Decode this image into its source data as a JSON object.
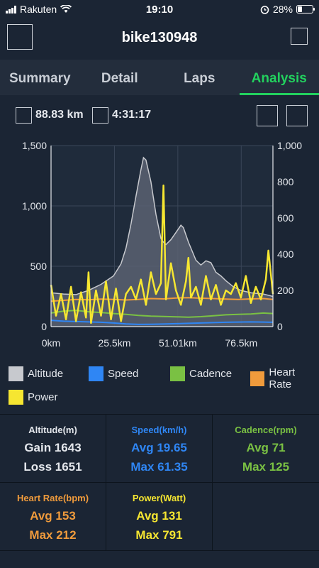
{
  "status_bar": {
    "carrier": "Rakuten",
    "time": "19:10",
    "battery_percent": "28%",
    "battery_level": 0.28
  },
  "header": {
    "title": "bike130948"
  },
  "tabs": [
    {
      "label": "Summary",
      "active": false
    },
    {
      "label": "Detail",
      "active": false
    },
    {
      "label": "Laps",
      "active": false
    },
    {
      "label": "Analysis",
      "active": true
    }
  ],
  "metrics": {
    "distance": "88.83 km",
    "duration": "4:31:17"
  },
  "colors": {
    "altitude": "#c7c9ce",
    "speed": "#2f86f4",
    "cadence": "#7ac143",
    "heart_rate": "#f09b3c",
    "power": "#f6e631",
    "accent": "#22d15e"
  },
  "chart_data": {
    "type": "line",
    "x_ticks": [
      "0km",
      "25.5km",
      "51.01km",
      "76.5km"
    ],
    "x_range": [
      0,
      88.83
    ],
    "y_left": {
      "ticks": [
        "0",
        "500",
        "1,000",
        "1,500"
      ],
      "range": [
        0,
        1500
      ]
    },
    "y_right": {
      "ticks": [
        "0",
        "200",
        "400",
        "600",
        "800",
        "1,000"
      ],
      "range": [
        0,
        1000
      ]
    },
    "grid": true,
    "legend": [
      "Altitude",
      "Speed",
      "Cadence",
      "Heart Rate",
      "Power"
    ],
    "series": [
      {
        "name": "Altitude",
        "axis": "left",
        "kind": "area",
        "x": [
          0,
          5,
          10,
          15,
          20,
          25,
          28,
          30,
          32,
          34,
          36,
          37,
          38,
          40,
          42,
          44,
          45,
          46,
          48,
          50,
          52,
          53,
          55,
          58,
          60,
          62,
          64,
          66,
          68,
          70,
          73,
          76,
          80,
          85,
          88.83
        ],
        "y": [
          280,
          270,
          265,
          300,
          350,
          420,
          520,
          650,
          850,
          1080,
          1300,
          1400,
          1380,
          1200,
          930,
          730,
          700,
          680,
          720,
          780,
          840,
          820,
          700,
          550,
          510,
          545,
          530,
          450,
          420,
          380,
          330,
          300,
          280,
          270,
          250
        ]
      },
      {
        "name": "Speed",
        "axis": "right",
        "kind": "line",
        "x": [
          0,
          5,
          10,
          15,
          20,
          25,
          30,
          35,
          40,
          45,
          50,
          55,
          60,
          65,
          70,
          75,
          80,
          85,
          88.83
        ],
        "y": [
          35,
          30,
          28,
          26,
          24,
          20,
          15,
          12,
          13,
          14,
          16,
          18,
          20,
          22,
          24,
          25,
          26,
          25,
          24
        ]
      },
      {
        "name": "Cadence",
        "axis": "right",
        "kind": "line",
        "x": [
          0,
          5,
          10,
          15,
          20,
          25,
          30,
          35,
          40,
          45,
          50,
          55,
          60,
          65,
          70,
          75,
          80,
          85,
          88.83
        ],
        "y": [
          75,
          85,
          90,
          82,
          78,
          72,
          68,
          62,
          58,
          56,
          54,
          52,
          55,
          60,
          65,
          68,
          70,
          75,
          72
        ]
      },
      {
        "name": "Heart Rate",
        "axis": "right",
        "kind": "line",
        "x": [
          0,
          5,
          10,
          15,
          20,
          25,
          30,
          35,
          40,
          45,
          50,
          55,
          60,
          65,
          70,
          75,
          80,
          85,
          88.83
        ],
        "y": [
          140,
          145,
          150,
          148,
          152,
          150,
          147,
          150,
          155,
          153,
          158,
          160,
          157,
          155,
          152,
          150,
          153,
          155,
          150
        ]
      },
      {
        "name": "Power",
        "axis": "right",
        "kind": "line",
        "x": [
          0,
          2,
          4,
          6,
          8,
          10,
          12,
          14,
          15,
          16,
          18,
          20,
          22,
          24,
          26,
          28,
          30,
          32,
          34,
          36,
          38,
          40,
          42,
          44,
          45,
          46,
          48,
          50,
          52,
          54,
          55,
          56,
          58,
          60,
          62,
          64,
          66,
          68,
          70,
          72,
          74,
          76,
          78,
          80,
          82,
          84,
          86,
          87,
          88.83
        ],
        "y": [
          230,
          60,
          180,
          40,
          220,
          30,
          190,
          50,
          300,
          20,
          200,
          60,
          250,
          40,
          210,
          30,
          180,
          220,
          150,
          260,
          120,
          300,
          180,
          240,
          780,
          150,
          350,
          200,
          120,
          250,
          380,
          160,
          220,
          120,
          280,
          150,
          230,
          120,
          200,
          180,
          240,
          160,
          280,
          130,
          220,
          150,
          260,
          420,
          180
        ]
      }
    ]
  },
  "stats": {
    "altitude": {
      "title": "Altitude(m)",
      "line1": "Gain 1643",
      "line2": "Loss 1651"
    },
    "speed": {
      "title": "Speed(km/h)",
      "line1": "Avg 19.65",
      "line2": "Max 61.35"
    },
    "cadence": {
      "title": "Cadence(rpm)",
      "line1": "Avg 71",
      "line2": "Max 125"
    },
    "heart_rate": {
      "title": "Heart Rate(bpm)",
      "line1": "Avg 153",
      "line2": "Max 212"
    },
    "power": {
      "title": "Power(Watt)",
      "line1": "Avg 131",
      "line2": "Max 791"
    }
  }
}
